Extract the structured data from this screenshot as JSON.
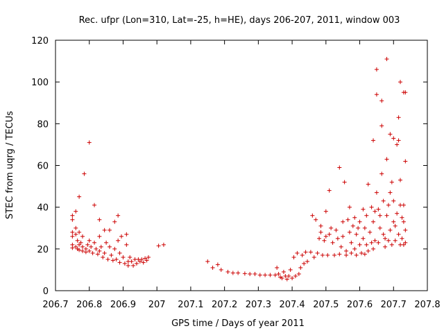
{
  "chart_data": {
    "type": "scatter",
    "title": "Rec. ufpr (Lon=310, Lat=-25, h=HE), days 206-207, 2011, window 003",
    "xlabel": "GPS time / Days of year 2011",
    "ylabel": "STEC from uqrg / TECUs",
    "xlim": [
      206.7,
      207.8
    ],
    "ylim": [
      0,
      120
    ],
    "x_ticks": [
      206.7,
      206.8,
      206.9,
      207,
      207.1,
      207.2,
      207.3,
      207.4,
      207.5,
      207.6,
      207.7,
      207.8
    ],
    "x_tick_labels": [
      "206.7",
      "206.8",
      "206.9",
      "207",
      "207.1",
      "207.2",
      "207.3",
      "207.4",
      "207.5",
      "207.6",
      "207.7",
      "207.8"
    ],
    "y_ticks": [
      0,
      20,
      40,
      60,
      80,
      100,
      120
    ],
    "y_tick_labels": [
      "0",
      "20",
      "40",
      "60",
      "80",
      "100",
      "120"
    ],
    "marker": "+",
    "color": "#cc0000",
    "series": [
      {
        "name": "STEC",
        "points": [
          [
            206.75,
            36
          ],
          [
            206.75,
            34
          ],
          [
            206.75,
            28
          ],
          [
            206.75,
            26
          ],
          [
            206.75,
            22
          ],
          [
            206.75,
            20.5
          ],
          [
            206.76,
            38
          ],
          [
            206.76,
            30
          ],
          [
            206.76,
            27
          ],
          [
            206.76,
            21
          ],
          [
            206.765,
            24
          ],
          [
            206.765,
            20
          ],
          [
            206.77,
            45
          ],
          [
            206.77,
            28
          ],
          [
            206.77,
            22
          ],
          [
            206.77,
            19.5
          ],
          [
            206.775,
            23
          ],
          [
            206.78,
            26
          ],
          [
            206.78,
            21
          ],
          [
            206.78,
            19
          ],
          [
            206.785,
            56
          ],
          [
            206.79,
            20
          ],
          [
            206.79,
            18.5
          ],
          [
            206.795,
            22
          ],
          [
            206.8,
            71
          ],
          [
            206.8,
            24
          ],
          [
            206.8,
            19
          ],
          [
            206.805,
            21
          ],
          [
            206.81,
            18
          ],
          [
            206.815,
            41
          ],
          [
            206.815,
            23
          ],
          [
            206.82,
            20
          ],
          [
            206.825,
            17.5
          ],
          [
            206.83,
            34
          ],
          [
            206.83,
            26
          ],
          [
            206.83,
            19
          ],
          [
            206.835,
            21
          ],
          [
            206.84,
            16
          ],
          [
            206.845,
            29
          ],
          [
            206.845,
            18
          ],
          [
            206.85,
            23
          ],
          [
            206.855,
            15
          ],
          [
            206.86,
            29
          ],
          [
            206.86,
            21
          ],
          [
            206.865,
            17
          ],
          [
            206.87,
            14.5
          ],
          [
            206.875,
            33
          ],
          [
            206.875,
            20
          ],
          [
            206.88,
            15
          ],
          [
            206.885,
            36
          ],
          [
            206.885,
            24
          ],
          [
            206.89,
            18
          ],
          [
            206.89,
            13.5
          ],
          [
            206.895,
            26
          ],
          [
            206.9,
            16
          ],
          [
            206.905,
            13
          ],
          [
            206.91,
            22
          ],
          [
            206.91,
            27
          ],
          [
            206.915,
            14
          ],
          [
            206.915,
            12
          ],
          [
            206.92,
            16
          ],
          [
            206.925,
            14
          ],
          [
            206.93,
            12
          ],
          [
            206.935,
            15
          ],
          [
            206.94,
            13
          ],
          [
            206.945,
            15
          ],
          [
            206.95,
            14
          ],
          [
            206.955,
            15
          ],
          [
            206.96,
            13.5
          ],
          [
            206.965,
            15.5
          ],
          [
            206.97,
            14.5
          ],
          [
            206.975,
            16
          ],
          [
            207.005,
            21.5
          ],
          [
            207.02,
            22
          ],
          [
            207.15,
            14
          ],
          [
            207.165,
            11
          ],
          [
            207.18,
            12.5
          ],
          [
            207.19,
            10
          ],
          [
            207.21,
            9
          ],
          [
            207.225,
            8.5
          ],
          [
            207.24,
            8.5
          ],
          [
            207.26,
            8.2
          ],
          [
            207.275,
            8
          ],
          [
            207.29,
            8
          ],
          [
            207.305,
            7.5
          ],
          [
            207.32,
            7.5
          ],
          [
            207.335,
            7.5
          ],
          [
            207.35,
            7.5
          ],
          [
            207.355,
            11
          ],
          [
            207.36,
            8
          ],
          [
            207.365,
            6.5
          ],
          [
            207.37,
            6
          ],
          [
            207.375,
            9
          ],
          [
            207.38,
            7
          ],
          [
            207.385,
            5.5
          ],
          [
            207.39,
            7
          ],
          [
            207.395,
            10
          ],
          [
            207.4,
            6
          ],
          [
            207.405,
            16
          ],
          [
            207.41,
            7
          ],
          [
            207.415,
            18
          ],
          [
            207.42,
            8
          ],
          [
            207.425,
            11
          ],
          [
            207.43,
            17
          ],
          [
            207.435,
            13
          ],
          [
            207.44,
            18.5
          ],
          [
            207.445,
            14
          ],
          [
            207.455,
            18.5
          ],
          [
            207.46,
            36
          ],
          [
            207.47,
            34
          ],
          [
            207.465,
            16
          ],
          [
            207.475,
            18
          ],
          [
            207.48,
            25
          ],
          [
            207.485,
            31
          ],
          [
            207.485,
            28
          ],
          [
            207.49,
            17
          ],
          [
            207.495,
            24
          ],
          [
            207.5,
            38
          ],
          [
            207.5,
            26
          ],
          [
            207.505,
            17
          ],
          [
            207.51,
            48
          ],
          [
            207.51,
            27
          ],
          [
            207.515,
            30
          ],
          [
            207.52,
            23
          ],
          [
            207.525,
            17
          ],
          [
            207.53,
            29
          ],
          [
            207.535,
            25
          ],
          [
            207.54,
            59
          ],
          [
            207.54,
            17.5
          ],
          [
            207.545,
            21
          ],
          [
            207.55,
            33
          ],
          [
            207.55,
            26
          ],
          [
            207.555,
            52
          ],
          [
            207.56,
            19
          ],
          [
            207.56,
            17
          ],
          [
            207.565,
            34
          ],
          [
            207.57,
            40
          ],
          [
            207.57,
            28
          ],
          [
            207.575,
            23
          ],
          [
            207.575,
            18
          ],
          [
            207.58,
            31
          ],
          [
            207.585,
            35
          ],
          [
            207.585,
            20
          ],
          [
            207.59,
            27
          ],
          [
            207.59,
            17
          ],
          [
            207.595,
            30
          ],
          [
            207.6,
            33
          ],
          [
            207.6,
            22
          ],
          [
            207.605,
            18
          ],
          [
            207.61,
            39
          ],
          [
            207.61,
            25
          ],
          [
            207.615,
            30
          ],
          [
            207.615,
            17.5
          ],
          [
            207.62,
            36
          ],
          [
            207.62,
            22
          ],
          [
            207.625,
            51
          ],
          [
            207.625,
            19
          ],
          [
            207.63,
            28
          ],
          [
            207.635,
            40
          ],
          [
            207.635,
            23
          ],
          [
            207.64,
            72
          ],
          [
            207.64,
            33
          ],
          [
            207.64,
            20
          ],
          [
            207.645,
            38
          ],
          [
            207.645,
            24
          ],
          [
            207.65,
            106
          ],
          [
            207.65,
            94
          ],
          [
            207.65,
            47
          ],
          [
            207.655,
            23
          ],
          [
            207.655,
            39
          ],
          [
            207.66,
            36
          ],
          [
            207.66,
            30
          ],
          [
            207.665,
            91
          ],
          [
            207.665,
            79
          ],
          [
            207.665,
            56
          ],
          [
            207.67,
            43
          ],
          [
            207.67,
            27
          ],
          [
            207.675,
            25
          ],
          [
            207.675,
            21
          ],
          [
            207.68,
            111
          ],
          [
            207.68,
            63
          ],
          [
            207.68,
            36
          ],
          [
            207.685,
            41
          ],
          [
            207.685,
            24
          ],
          [
            207.69,
            75
          ],
          [
            207.69,
            47
          ],
          [
            207.69,
            29
          ],
          [
            207.695,
            52
          ],
          [
            207.695,
            22
          ],
          [
            207.7,
            73
          ],
          [
            207.7,
            43
          ],
          [
            207.7,
            33
          ],
          [
            207.705,
            31
          ],
          [
            207.705,
            24
          ],
          [
            207.71,
            70
          ],
          [
            207.71,
            37
          ],
          [
            207.715,
            83
          ],
          [
            207.715,
            72
          ],
          [
            207.715,
            27
          ],
          [
            207.72,
            100
          ],
          [
            207.72,
            53
          ],
          [
            207.72,
            41
          ],
          [
            207.72,
            22
          ],
          [
            207.725,
            35
          ],
          [
            207.725,
            25
          ],
          [
            207.73,
            95
          ],
          [
            207.73,
            41
          ],
          [
            207.73,
            33
          ],
          [
            207.73,
            22
          ],
          [
            207.735,
            95
          ],
          [
            207.735,
            62
          ],
          [
            207.735,
            29
          ],
          [
            207.735,
            23
          ]
        ]
      }
    ]
  }
}
